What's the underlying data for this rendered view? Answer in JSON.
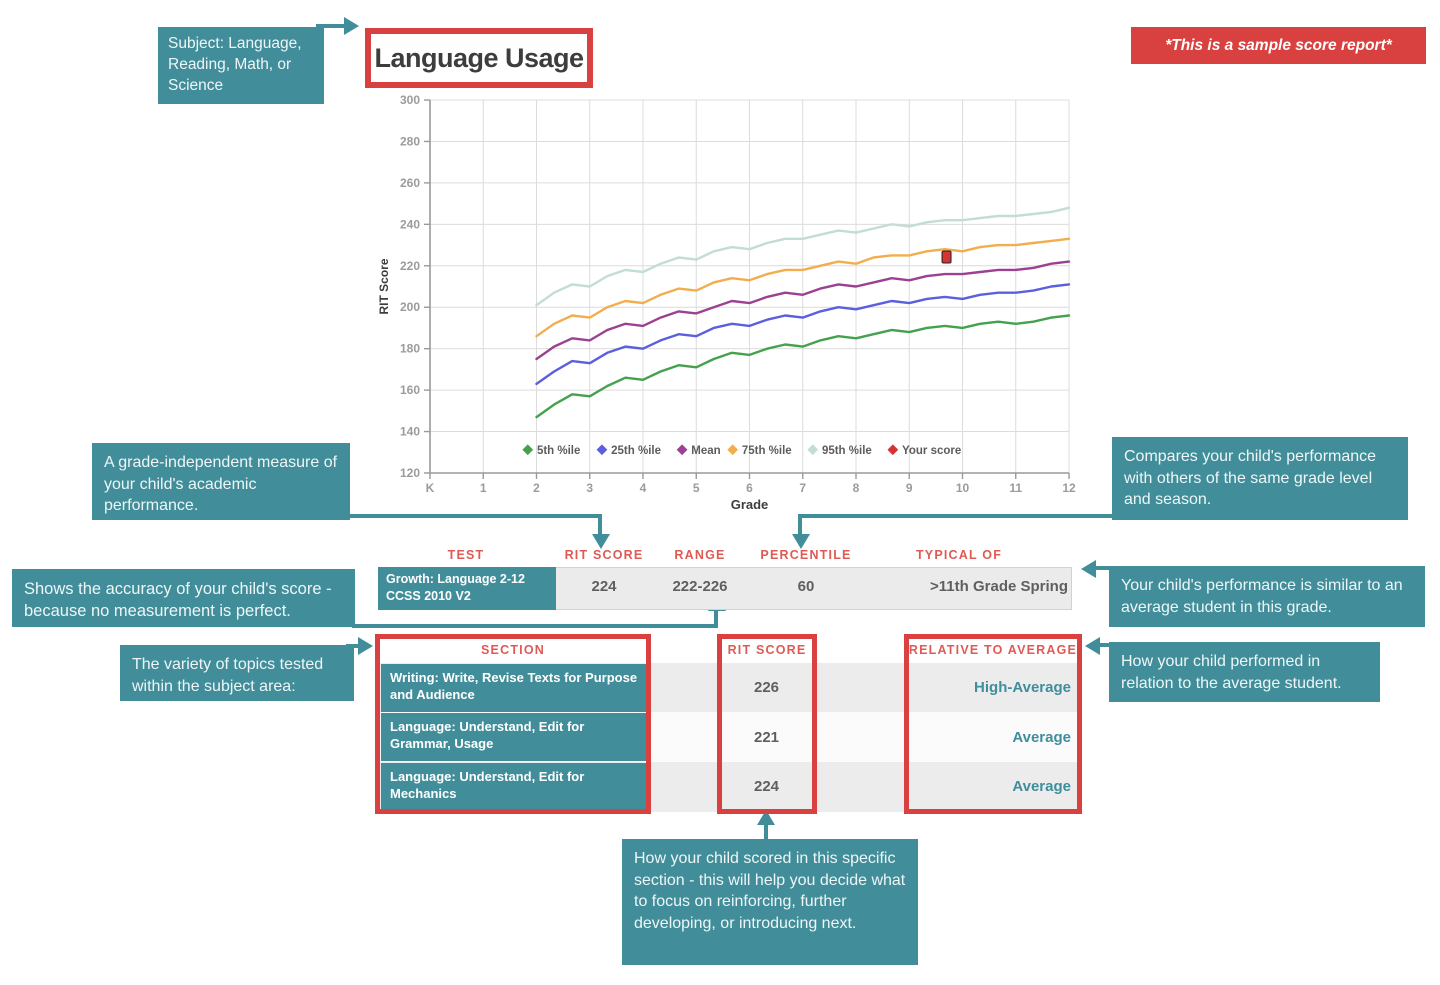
{
  "title": "Language Usage",
  "banner": {
    "text": "*This is a sample score report*"
  },
  "callouts": {
    "subject": "Subject: Language, Reading, Math, or Science",
    "rit": "A grade-independent measure of your child's academic performance.",
    "range": "Shows the accuracy of your child's score - because no measurement is perfect.",
    "variety": "The variety of topics tested within the subject area:",
    "percentile": "Compares your child's performance with others of the same grade level and season.",
    "typical": "Your child's performance is similar to an average student in this grade.",
    "relative": "How your child performed in relation to the average student.",
    "section_score": "How your child scored in this specific section - this will help you decide what to focus on reinforcing, further developing, or introducing next."
  },
  "test_table": {
    "headers": [
      "TEST",
      "RIT SCORE",
      "RANGE",
      "PERCENTILE",
      "TYPICAL OF"
    ],
    "row": {
      "test": "Growth: Language 2-12 CCSS 2010 V2",
      "rit_score": "224",
      "range": "222-226",
      "percentile": "60",
      "typical_of": ">11th Grade Spring"
    }
  },
  "section_table": {
    "headers": [
      "SECTION",
      "RIT SCORE",
      "RELATIVE TO AVERAGE"
    ],
    "rows": [
      {
        "section": "Writing: Write, Revise Texts for Purpose and Audience",
        "rit_score": "226",
        "relative": "High-Average"
      },
      {
        "section": "Language: Understand, Edit for Grammar, Usage",
        "rit_score": "221",
        "relative": "Average"
      },
      {
        "section": "Language: Understand, Edit for Mechanics",
        "rit_score": "224",
        "relative": "Average"
      }
    ]
  },
  "palette": {
    "teal": "#418e9a",
    "red": "#d8413f",
    "header_red": "#e05a55",
    "relative_teal": "#3e8e9c",
    "value_gray": "#5f5f5f"
  },
  "chart_data": {
    "type": "line",
    "title": "Language Usage",
    "xlabel": "Grade",
    "ylabel": "RIT Score",
    "xlim": [
      0,
      12
    ],
    "ylim": [
      120,
      300
    ],
    "ytick_step": 20,
    "x_ticks": [
      "K",
      "1",
      "2",
      "3",
      "4",
      "5",
      "6",
      "7",
      "8",
      "9",
      "10",
      "11",
      "12"
    ],
    "grid": true,
    "legend_position": "bottom-inside",
    "x": [
      2,
      2.33,
      2.67,
      3,
      3.33,
      3.67,
      4,
      4.33,
      4.67,
      5,
      5.33,
      5.67,
      6,
      6.33,
      6.67,
      7,
      7.33,
      7.67,
      8,
      8.33,
      8.67,
      9,
      9.33,
      9.67,
      10,
      10.33,
      10.67,
      11,
      11.33,
      11.67,
      12
    ],
    "series": [
      {
        "name": "5th %ile",
        "color": "#44a14e",
        "values": [
          147,
          153,
          158,
          157,
          162,
          166,
          165,
          169,
          172,
          171,
          175,
          178,
          177,
          180,
          182,
          181,
          184,
          186,
          185,
          187,
          189,
          188,
          190,
          191,
          190,
          192,
          193,
          192,
          193,
          195,
          196
        ]
      },
      {
        "name": "25th %ile",
        "color": "#5a5fe0",
        "values": [
          163,
          169,
          174,
          173,
          178,
          181,
          180,
          184,
          187,
          186,
          190,
          192,
          191,
          194,
          196,
          195,
          198,
          200,
          199,
          201,
          203,
          202,
          204,
          205,
          204,
          206,
          207,
          207,
          208,
          210,
          211
        ]
      },
      {
        "name": "Mean",
        "color": "#9c4191",
        "values": [
          175,
          181,
          185,
          184,
          189,
          192,
          191,
          195,
          198,
          197,
          200,
          203,
          202,
          205,
          207,
          206,
          209,
          211,
          210,
          212,
          214,
          213,
          215,
          216,
          216,
          217,
          218,
          218,
          219,
          221,
          222
        ]
      },
      {
        "name": "75th %ile",
        "color": "#f2ae4e",
        "values": [
          186,
          192,
          196,
          195,
          200,
          203,
          202,
          206,
          209,
          208,
          212,
          214,
          213,
          216,
          218,
          218,
          220,
          222,
          221,
          224,
          225,
          225,
          227,
          228,
          227,
          229,
          230,
          230,
          231,
          232,
          233
        ]
      },
      {
        "name": "95th %ile",
        "color": "#c2dcd6",
        "values": [
          201,
          207,
          211,
          210,
          215,
          218,
          217,
          221,
          224,
          223,
          227,
          229,
          228,
          231,
          233,
          233,
          235,
          237,
          236,
          238,
          240,
          239,
          241,
          242,
          242,
          243,
          244,
          244,
          245,
          246,
          248
        ]
      }
    ],
    "your_score": {
      "name": "Your score",
      "color": "#d63434",
      "grade": 9.7,
      "value": 224
    }
  }
}
